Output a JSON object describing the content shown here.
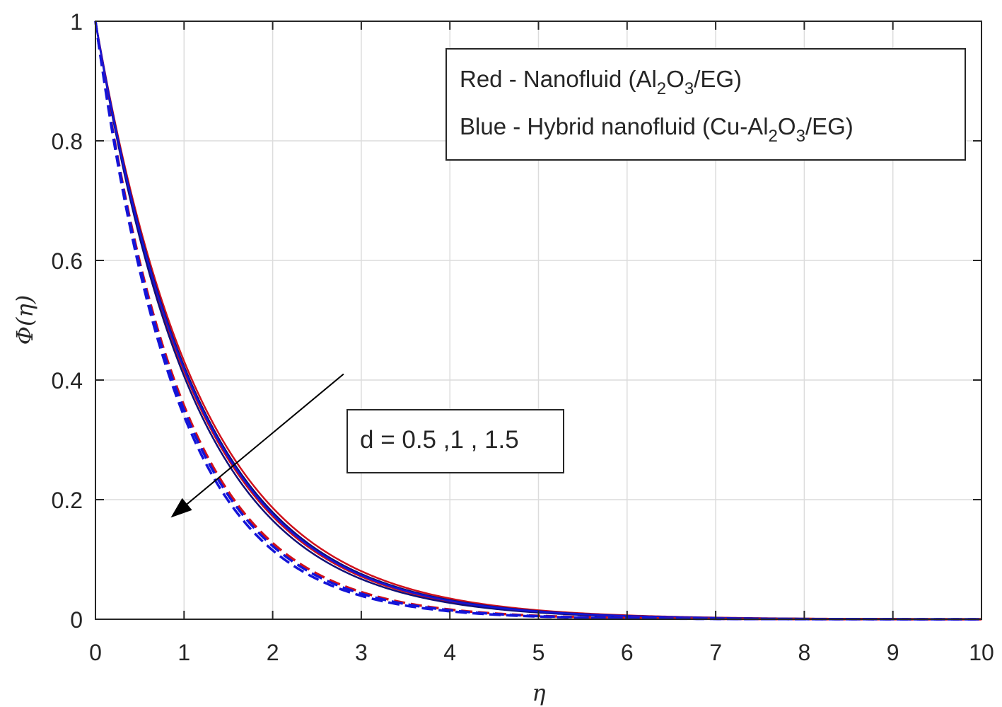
{
  "chart_data": {
    "type": "line",
    "title": "",
    "xlabel": "η",
    "ylabel": "Φ(η)",
    "xlim": [
      0,
      10
    ],
    "ylim": [
      0,
      1
    ],
    "xticks": [
      "0",
      "1",
      "2",
      "3",
      "4",
      "5",
      "6",
      "7",
      "8",
      "9",
      "10"
    ],
    "yticks": [
      "0",
      "0.2",
      "0.4",
      "0.6",
      "0.8",
      "1"
    ],
    "grid": true,
    "legend": {
      "placement": "top-right",
      "red_prefix": "Red - Nanofluid (Al",
      "red_s1": "2",
      "red_mid": "O",
      "red_s2": "3",
      "red_suffix": "/EG)",
      "blue_prefix": "Blue - Hybrid nanofluid (Cu-Al",
      "blue_s1": "2",
      "blue_mid": "O",
      "blue_s2": "3",
      "blue_suffix": "/EG)"
    },
    "annotation": {
      "text": "d = 0.5 ,1 , 1.5",
      "arrow_from": [
        2.8,
        0.41
      ],
      "arrow_to": [
        0.85,
        0.17
      ]
    },
    "colors": {
      "red": "#d0101a",
      "blue": "#1414d8",
      "navy": "#101078"
    },
    "series": [
      {
        "color": "red",
        "dash": "solid",
        "decay": 0.84,
        "x0": 0.5,
        "y0": 0.34
      },
      {
        "color": "navy",
        "dash": "solid",
        "decay": 0.86,
        "x0": 0.5,
        "y0": 0.343
      },
      {
        "color": "red",
        "dash": "solid",
        "decay": 0.88,
        "x0": 0.5,
        "y0": 0.36
      },
      {
        "color": "navy",
        "dash": "solid",
        "decay": 0.9,
        "x0": 0.5,
        "y0": 0.363
      },
      {
        "color": "blue",
        "dash": "solid",
        "decay": 0.87,
        "x0": 0.5,
        "y0": 0.355
      },
      {
        "color": "red",
        "dash": "dash",
        "decay": 1.03,
        "x0": 0.45,
        "y0": 0.4
      },
      {
        "color": "blue",
        "dash": "dash",
        "decay": 1.05,
        "x0": 0.45,
        "y0": 0.4
      },
      {
        "color": "blue",
        "dash": "dash",
        "decay": 1.08,
        "x0": 0.45,
        "y0": 0.42
      }
    ]
  }
}
